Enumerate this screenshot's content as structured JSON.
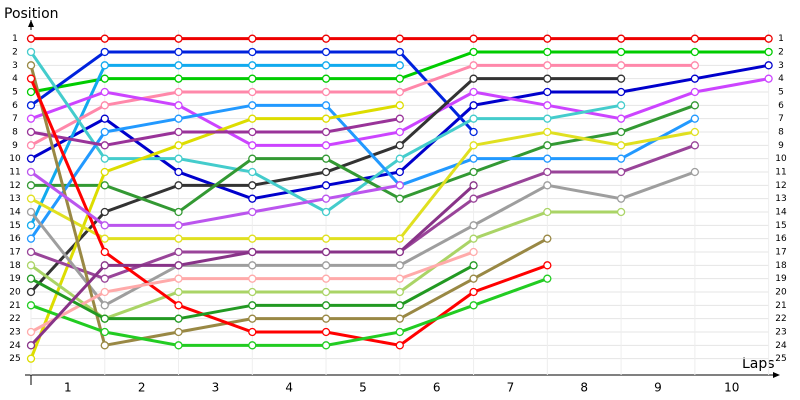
{
  "chart_data": {
    "type": "line",
    "y_label": "Position",
    "x_label": "Laps",
    "x": [
      0,
      1,
      2,
      3,
      4,
      5,
      6,
      7,
      8,
      9,
      10
    ],
    "xlim": [
      0,
      10.1
    ],
    "xticks": [
      {
        "value": 0.5,
        "label": "1"
      },
      {
        "value": 1.5,
        "label": "2"
      },
      {
        "value": 2.5,
        "label": "3"
      },
      {
        "value": 3.5,
        "label": "4"
      },
      {
        "value": 4.5,
        "label": "5"
      },
      {
        "value": 5.5,
        "label": "6"
      },
      {
        "value": 6.5,
        "label": "7"
      },
      {
        "value": 7.5,
        "label": "8"
      },
      {
        "value": 8.5,
        "label": "9"
      },
      {
        "value": 9.5,
        "label": "10"
      }
    ],
    "ylim": [
      26,
      0
    ],
    "yticks": [
      1,
      2,
      3,
      4,
      5,
      6,
      7,
      8,
      9,
      10,
      11,
      12,
      13,
      14,
      15,
      16,
      17,
      18,
      19,
      20,
      21,
      22,
      23,
      24,
      25
    ],
    "grid": true,
    "series": [
      {
        "color": "#ee0000",
        "values": [
          1,
          1,
          1,
          1,
          1,
          1,
          1,
          1,
          1,
          1,
          1
        ]
      },
      {
        "color": "#00cc00",
        "values": [
          5,
          4,
          4,
          4,
          4,
          4,
          2,
          2,
          2,
          2,
          2
        ]
      },
      {
        "color": "#0000cc",
        "values": [
          10,
          7,
          11,
          13,
          12,
          11,
          6,
          5,
          5,
          4,
          3
        ]
      },
      {
        "color": "#0022dd",
        "values": [
          6,
          2,
          2,
          2,
          2,
          2,
          8,
          null,
          null,
          null,
          null
        ]
      },
      {
        "color": "#11aaee",
        "values": [
          15,
          3,
          3,
          3,
          3,
          3,
          null,
          null,
          null,
          null,
          null
        ]
      },
      {
        "color": "#ff88aa",
        "values": [
          9,
          6,
          5,
          5,
          5,
          5,
          3,
          3,
          3,
          3,
          null
        ]
      },
      {
        "color": "#cc44ff",
        "values": [
          7,
          5,
          6,
          9,
          9,
          8,
          5,
          6,
          7,
          5,
          4
        ]
      },
      {
        "color": "#333333",
        "values": [
          20,
          14,
          12,
          12,
          11,
          9,
          4,
          4,
          4,
          null,
          null
        ]
      },
      {
        "color": "#44cccc",
        "values": [
          2,
          10,
          10,
          11,
          14,
          10,
          7,
          7,
          6,
          null,
          null
        ]
      },
      {
        "color": "#339933",
        "values": [
          12,
          12,
          14,
          10,
          10,
          13,
          11,
          9,
          8,
          6,
          null
        ]
      },
      {
        "color": "#2299ff",
        "values": [
          16,
          8,
          7,
          6,
          6,
          12,
          10,
          10,
          10,
          7,
          null
        ]
      },
      {
        "color": "#dddd00",
        "values": [
          25,
          11,
          9,
          7,
          7,
          6,
          null,
          null,
          null,
          null,
          null
        ]
      },
      {
        "color": "#e0e020",
        "values": [
          13,
          16,
          16,
          16,
          16,
          16,
          9,
          8,
          9,
          8,
          null
        ]
      },
      {
        "color": "#993399",
        "values": [
          8,
          9,
          8,
          8,
          8,
          7,
          null,
          null,
          null,
          null,
          null
        ]
      },
      {
        "color": "#994499",
        "values": [
          17,
          19,
          17,
          17,
          17,
          17,
          13,
          11,
          11,
          9,
          null
        ]
      },
      {
        "color": "#9e9e9e",
        "values": [
          14,
          21,
          18,
          18,
          18,
          18,
          15,
          12,
          13,
          11,
          null
        ]
      },
      {
        "color": "#aad466",
        "values": [
          18,
          22,
          20,
          20,
          20,
          20,
          16,
          14,
          14,
          null,
          null
        ]
      },
      {
        "color": "#998844",
        "values": [
          3,
          24,
          23,
          22,
          22,
          22,
          19,
          16,
          null,
          null,
          null
        ]
      },
      {
        "color": "#ff0000",
        "values": [
          4,
          17,
          21,
          23,
          23,
          24,
          20,
          18,
          null,
          null,
          null
        ]
      },
      {
        "color": "#22cc22",
        "values": [
          21,
          23,
          24,
          24,
          24,
          23,
          21,
          19,
          null,
          null,
          null
        ]
      },
      {
        "color": "#ffaaaa",
        "values": [
          23,
          20,
          19,
          19,
          19,
          19,
          17,
          null,
          null,
          null,
          null
        ]
      },
      {
        "color": "#229922",
        "values": [
          19,
          22,
          22,
          21,
          21,
          21,
          18,
          null,
          null,
          null,
          null
        ]
      },
      {
        "color": "#bb55ee",
        "values": [
          11,
          15,
          15,
          14,
          13,
          12,
          null,
          null,
          null,
          null,
          null
        ]
      },
      {
        "color": "#883388",
        "values": [
          24,
          18,
          18,
          17,
          17,
          17,
          12,
          null,
          null,
          null,
          null
        ]
      }
    ]
  }
}
